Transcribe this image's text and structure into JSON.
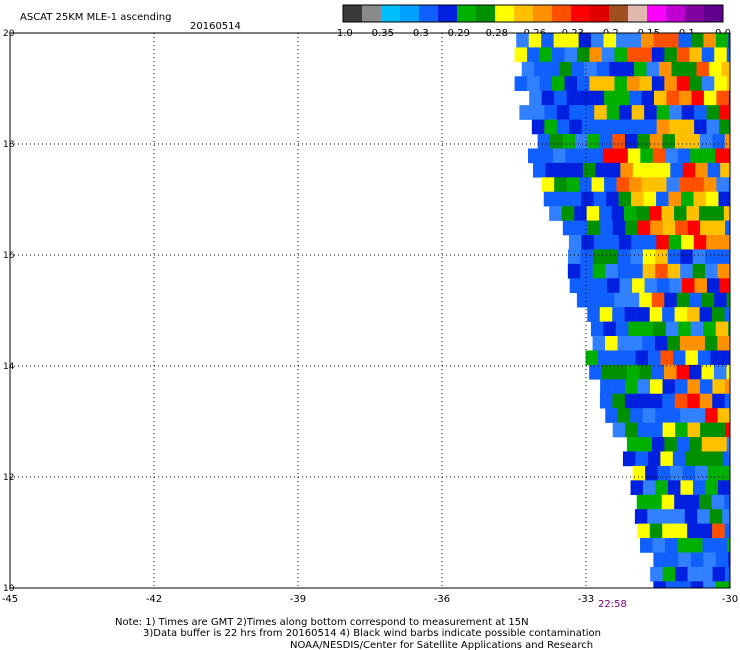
{
  "header": {
    "title": "ASCAT 25KM MLE-1 ascending",
    "date": "20160514"
  },
  "colorbar": {
    "segments": [
      "#3a3a3a",
      "#8a8a8a",
      "#00bfff",
      "#00a0ff",
      "#1060ff",
      "#0020e0",
      "#00b000",
      "#009000",
      "#ffff00",
      "#ffc000",
      "#ff9000",
      "#ff5000",
      "#ff0000",
      "#e00000",
      "#a05020",
      "#e0b8b0",
      "#ff00ff",
      "#c000d0",
      "#8000a0",
      "#600090"
    ],
    "labels": [
      "-1.0",
      "-0.35",
      "-0.3",
      "-0.29",
      "-0.28",
      "-0.26",
      "-0.23",
      "-0.2",
      "-0.15",
      "-0.1",
      "0.0"
    ]
  },
  "time_label": "22:58",
  "notes": [
    "Note: 1) Times are GMT 2)Times along bottom correspond to measurement at 15N",
    "3)Data buffer is 22 hrs from 20160514 4) Black wind barbs indicate possible contamination",
    "NOAA/NESDIS/Center for Satellite Applications and Research"
  ],
  "chart_data": {
    "type": "heatmap",
    "title": "ASCAT 25KM MLE-1 ascending",
    "xlim": [
      -45,
      -30
    ],
    "ylim": [
      10,
      20
    ],
    "x_ticks": [
      "-45",
      "-42",
      "-39",
      "-36",
      "-33",
      "-30"
    ],
    "y_ticks": [
      "20",
      "18",
      "16",
      "14",
      "12",
      "10"
    ],
    "grid": true,
    "swath_left_edge": [
      [
        20,
        -34.5
      ],
      [
        18,
        -34.1
      ],
      [
        17,
        -33.7
      ],
      [
        16,
        -33.3
      ],
      [
        14,
        -32.8
      ],
      [
        12,
        -32.0
      ],
      [
        10,
        -31.5
      ]
    ],
    "cell_deg": 0.26,
    "color_palette": [
      "#1060ff",
      "#1060ff",
      "#3080ff",
      "#0020e0",
      "#00b000",
      "#009000",
      "#ffff00",
      "#ffc000",
      "#ff9000",
      "#ff5000",
      "#ff0000"
    ]
  }
}
